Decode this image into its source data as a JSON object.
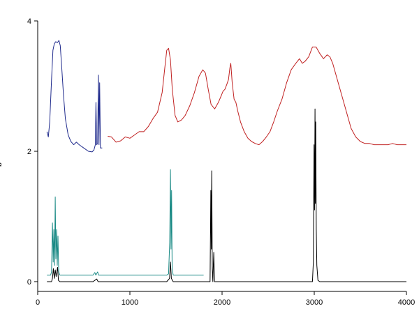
{
  "chart_data": {
    "type": "line",
    "title": "",
    "xlabel": "",
    "ylabel": "b",
    "xlim": [
      0,
      4000
    ],
    "ylim": [
      -0.15,
      4.0
    ],
    "x_ticks": [
      0,
      1000,
      2000,
      3000,
      4000
    ],
    "y_ticks": [
      0,
      2,
      4
    ],
    "x_tick_labels": [
      "0",
      "1000",
      "2000",
      "3000",
      "4000"
    ],
    "y_tick_labels": [
      "0",
      "2",
      "4"
    ],
    "grid": false,
    "legend": "none",
    "series": [
      {
        "color": "#1f2a8c",
        "points": [
          [
            100,
            2.3
          ],
          [
            115,
            2.22
          ],
          [
            130,
            2.45
          ],
          [
            150,
            3.1
          ],
          [
            165,
            3.55
          ],
          [
            180,
            3.65
          ],
          [
            195,
            3.68
          ],
          [
            215,
            3.67
          ],
          [
            230,
            3.7
          ],
          [
            245,
            3.62
          ],
          [
            260,
            3.3
          ],
          [
            280,
            2.85
          ],
          [
            300,
            2.5
          ],
          [
            330,
            2.25
          ],
          [
            360,
            2.15
          ],
          [
            390,
            2.1
          ],
          [
            420,
            2.14
          ],
          [
            450,
            2.1
          ],
          [
            500,
            2.05
          ],
          [
            550,
            2.0
          ],
          [
            590,
            1.99
          ],
          [
            610,
            2.02
          ],
          [
            625,
            2.1
          ],
          [
            632,
            2.75
          ],
          [
            640,
            2.1
          ],
          [
            650,
            2.12
          ],
          [
            658,
            3.17
          ],
          [
            665,
            2.1
          ],
          [
            672,
            3.05
          ],
          [
            680,
            2.05
          ],
          [
            700,
            2.05
          ]
        ]
      },
      {
        "color": "#c02020",
        "points": [
          [
            760,
            2.23
          ],
          [
            800,
            2.22
          ],
          [
            850,
            2.14
          ],
          [
            900,
            2.16
          ],
          [
            950,
            2.22
          ],
          [
            1000,
            2.2
          ],
          [
            1050,
            2.25
          ],
          [
            1100,
            2.3
          ],
          [
            1150,
            2.3
          ],
          [
            1200,
            2.38
          ],
          [
            1250,
            2.5
          ],
          [
            1300,
            2.6
          ],
          [
            1350,
            2.9
          ],
          [
            1380,
            3.3
          ],
          [
            1400,
            3.55
          ],
          [
            1420,
            3.58
          ],
          [
            1440,
            3.4
          ],
          [
            1460,
            2.95
          ],
          [
            1490,
            2.55
          ],
          [
            1520,
            2.45
          ],
          [
            1560,
            2.48
          ],
          [
            1600,
            2.55
          ],
          [
            1650,
            2.7
          ],
          [
            1700,
            2.9
          ],
          [
            1750,
            3.15
          ],
          [
            1790,
            3.25
          ],
          [
            1820,
            3.2
          ],
          [
            1850,
            2.95
          ],
          [
            1880,
            2.72
          ],
          [
            1920,
            2.65
          ],
          [
            1960,
            2.75
          ],
          [
            1990,
            2.85
          ],
          [
            2010,
            2.92
          ],
          [
            2030,
            2.95
          ],
          [
            2050,
            3.02
          ],
          [
            2070,
            3.1
          ],
          [
            2085,
            3.28
          ],
          [
            2095,
            3.35
          ],
          [
            2110,
            3.05
          ],
          [
            2130,
            2.8
          ],
          [
            2150,
            2.75
          ],
          [
            2170,
            2.62
          ],
          [
            2200,
            2.45
          ],
          [
            2240,
            2.3
          ],
          [
            2280,
            2.2
          ],
          [
            2320,
            2.15
          ],
          [
            2360,
            2.12
          ],
          [
            2400,
            2.1
          ],
          [
            2440,
            2.15
          ],
          [
            2480,
            2.22
          ],
          [
            2520,
            2.3
          ],
          [
            2560,
            2.45
          ],
          [
            2600,
            2.62
          ],
          [
            2650,
            2.8
          ],
          [
            2700,
            3.05
          ],
          [
            2750,
            3.25
          ],
          [
            2800,
            3.35
          ],
          [
            2840,
            3.42
          ],
          [
            2870,
            3.35
          ],
          [
            2900,
            3.38
          ],
          [
            2940,
            3.45
          ],
          [
            2980,
            3.6
          ],
          [
            3020,
            3.6
          ],
          [
            3060,
            3.5
          ],
          [
            3100,
            3.42
          ],
          [
            3140,
            3.48
          ],
          [
            3170,
            3.45
          ],
          [
            3200,
            3.35
          ],
          [
            3250,
            3.1
          ],
          [
            3300,
            2.85
          ],
          [
            3350,
            2.6
          ],
          [
            3400,
            2.35
          ],
          [
            3450,
            2.22
          ],
          [
            3500,
            2.15
          ],
          [
            3550,
            2.12
          ],
          [
            3600,
            2.12
          ],
          [
            3650,
            2.1
          ],
          [
            3700,
            2.1
          ],
          [
            3750,
            2.1
          ],
          [
            3800,
            2.1
          ],
          [
            3850,
            2.12
          ],
          [
            3900,
            2.1
          ],
          [
            3950,
            2.1
          ],
          [
            4000,
            2.1
          ]
        ]
      },
      {
        "color": "#1a8a85",
        "points": [
          [
            100,
            0.1
          ],
          [
            140,
            0.1
          ],
          [
            150,
            0.15
          ],
          [
            160,
            0.9
          ],
          [
            168,
            0.3
          ],
          [
            175,
            0.8
          ],
          [
            183,
            0.25
          ],
          [
            190,
            1.3
          ],
          [
            197,
            0.35
          ],
          [
            205,
            0.8
          ],
          [
            212,
            0.25
          ],
          [
            220,
            0.7
          ],
          [
            228,
            0.15
          ],
          [
            240,
            0.1
          ],
          [
            400,
            0.1
          ],
          [
            600,
            0.1
          ],
          [
            620,
            0.14
          ],
          [
            630,
            0.1
          ],
          [
            650,
            0.15
          ],
          [
            660,
            0.1
          ],
          [
            1000,
            0.1
          ],
          [
            1400,
            0.1
          ],
          [
            1420,
            0.12
          ],
          [
            1432,
            0.6
          ],
          [
            1440,
            1.72
          ],
          [
            1446,
            0.5
          ],
          [
            1452,
            1.4
          ],
          [
            1458,
            0.2
          ],
          [
            1470,
            0.1
          ],
          [
            1750,
            0.1
          ],
          [
            1800,
            0.1
          ]
        ]
      },
      {
        "color": "#000000",
        "points": [
          [
            100,
            0
          ],
          [
            150,
            0
          ],
          [
            160,
            0.05
          ],
          [
            170,
            0.2
          ],
          [
            180,
            0.05
          ],
          [
            190,
            0.18
          ],
          [
            200,
            0.08
          ],
          [
            215,
            0.22
          ],
          [
            225,
            0.02
          ],
          [
            240,
            0
          ],
          [
            600,
            0
          ],
          [
            640,
            0.04
          ],
          [
            655,
            0
          ],
          [
            700,
            0
          ],
          [
            1000,
            0
          ],
          [
            1400,
            0
          ],
          [
            1430,
            0.05
          ],
          [
            1440,
            0.3
          ],
          [
            1450,
            0.05
          ],
          [
            1470,
            0
          ],
          [
            1800,
            0
          ],
          [
            1870,
            0
          ],
          [
            1878,
            1.4
          ],
          [
            1883,
            0.5
          ],
          [
            1888,
            1.7
          ],
          [
            1894,
            0.2
          ],
          [
            1900,
            0
          ],
          [
            1910,
            0.45
          ],
          [
            1918,
            0
          ],
          [
            2000,
            0
          ],
          [
            2500,
            0
          ],
          [
            2980,
            0
          ],
          [
            2990,
            0.3
          ],
          [
            2998,
            2.1
          ],
          [
            3003,
            1.1
          ],
          [
            3008,
            2.65
          ],
          [
            3012,
            1.2
          ],
          [
            3016,
            2.45
          ],
          [
            3022,
            0.8
          ],
          [
            3028,
            0.25
          ],
          [
            3040,
            0.02
          ],
          [
            3060,
            0
          ],
          [
            3200,
            0
          ],
          [
            3500,
            0
          ],
          [
            4000,
            0
          ]
        ]
      }
    ]
  }
}
